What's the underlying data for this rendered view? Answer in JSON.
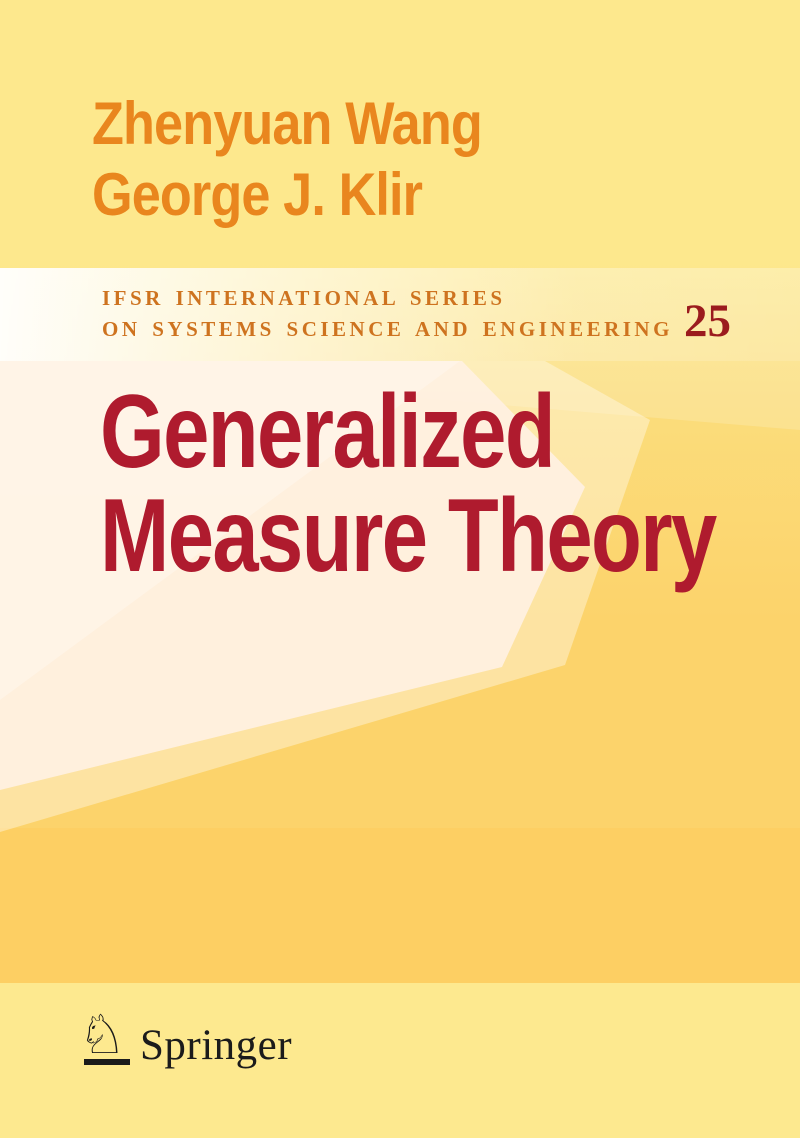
{
  "cover": {
    "authors": [
      "Zhenyuan Wang",
      "George J. Klir"
    ],
    "series": {
      "line1": "IFSR INTERNATIONAL SERIES",
      "line2": "ON SYSTEMS SCIENCE AND ENGINEERING",
      "volume": "25"
    },
    "title": {
      "line1": "Generalized",
      "line2": "Measure Theory"
    },
    "publisher": {
      "name": "Springer",
      "logo_icon": "springer-horse-knight-icon",
      "logo_glyph": "♘"
    }
  },
  "colors": {
    "page_yellow_top": "#FDE88D",
    "page_orange_mid": "#FDCF63",
    "page_yellow_footer": "#FDE98F",
    "cream_panel": "#FDF0E1",
    "author_orange": "#E9861E",
    "series_orange": "#CE731F",
    "volume_red": "#9B1B1E",
    "title_red": "#AF1B2E",
    "logo_black": "#1B1B1B"
  }
}
